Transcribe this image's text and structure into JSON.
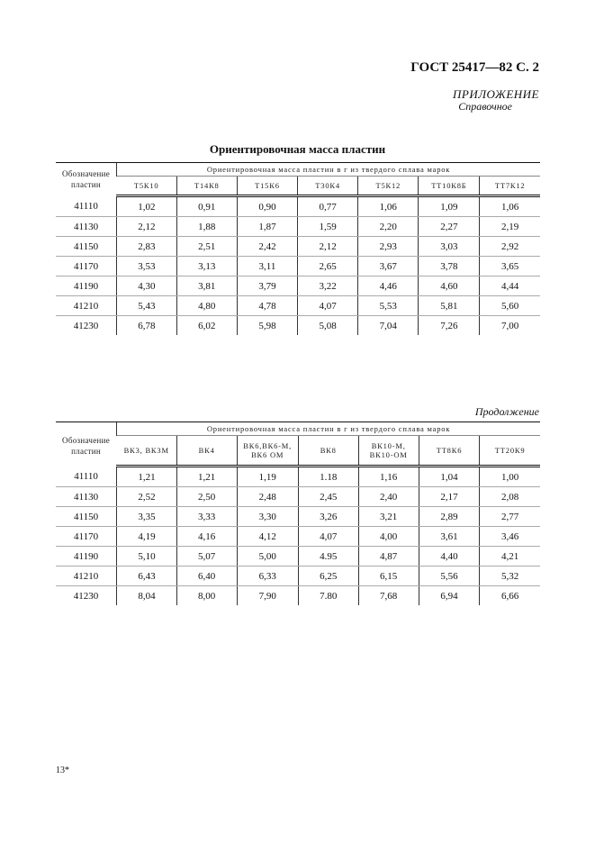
{
  "header": "ГОСТ 25417—82 С. 2",
  "appendix": "ПРИЛОЖЕНИЕ",
  "appendix_type": "Справочное",
  "table1": {
    "title": "Ориентировочная масса пластин",
    "row_header": "Обозначение пластин",
    "group_header": "Ориентировочная масса пластин в г из твердого сплава марок",
    "columns": [
      "Т5К10",
      "Т14К8",
      "Т15К6",
      "Т30К4",
      "Т5К12",
      "ТТ10К8Б",
      "ТТ7К12"
    ],
    "rows": [
      [
        "41110",
        "1,02",
        "0,91",
        "0,90",
        "0,77",
        "1,06",
        "1,09",
        "1,06"
      ],
      [
        "41130",
        "2,12",
        "1,88",
        "1,87",
        "1,59",
        "2,20",
        "2,27",
        "2,19"
      ],
      [
        "41150",
        "2,83",
        "2,51",
        "2,42",
        "2,12",
        "2,93",
        "3,03",
        "2,92"
      ],
      [
        "41170",
        "3,53",
        "3,13",
        "3,11",
        "2,65",
        "3,67",
        "3,78",
        "3,65"
      ],
      [
        "41190",
        "4,30",
        "3,81",
        "3,79",
        "3,22",
        "4,46",
        "4,60",
        "4,44"
      ],
      [
        "41210",
        "5,43",
        "4,80",
        "4,78",
        "4,07",
        "5,53",
        "5,81",
        "5,60"
      ],
      [
        "41230",
        "6,78",
        "6,02",
        "5,98",
        "5,08",
        "7,04",
        "7,26",
        "7,00"
      ]
    ]
  },
  "continuation": "Продолжение",
  "table2": {
    "row_header": "Обозначение пластин",
    "group_header": "Ориентировочная масса пластин в г из твердого сплава марок",
    "columns": [
      "ВК3, ВК3М",
      "ВК4",
      "ВК6,ВК6-М, ВК6 ОМ",
      "ВК8",
      "ВК10-М, ВК10-ОМ",
      "ТТ8К6",
      "ТТ20К9"
    ],
    "rows": [
      [
        "41110",
        "1,21",
        "1,21",
        "1,19",
        "1.18",
        "1,16",
        "1,04",
        "1,00"
      ],
      [
        "41130",
        "2,52",
        "2,50",
        "2,48",
        "2,45",
        "2,40",
        "2,17",
        "2,08"
      ],
      [
        "41150",
        "3,35",
        "3,33",
        "3,30",
        "3,26",
        "3,21",
        "2,89",
        "2,77"
      ],
      [
        "41170",
        "4,19",
        "4,16",
        "4,12",
        "4,07",
        "4,00",
        "3,61",
        "3,46"
      ],
      [
        "41190",
        "5,10",
        "5,07",
        "5,00",
        "4.95",
        "4,87",
        "4,40",
        "4,21"
      ],
      [
        "41210",
        "6,43",
        "6,40",
        "6,33",
        "6,25",
        "6,15",
        "5,56",
        "5,32"
      ],
      [
        "41230",
        "8,04",
        "8,00",
        "7,90",
        "7.80",
        "7,68",
        "6,94",
        "6,66"
      ]
    ]
  },
  "footer": "13*"
}
